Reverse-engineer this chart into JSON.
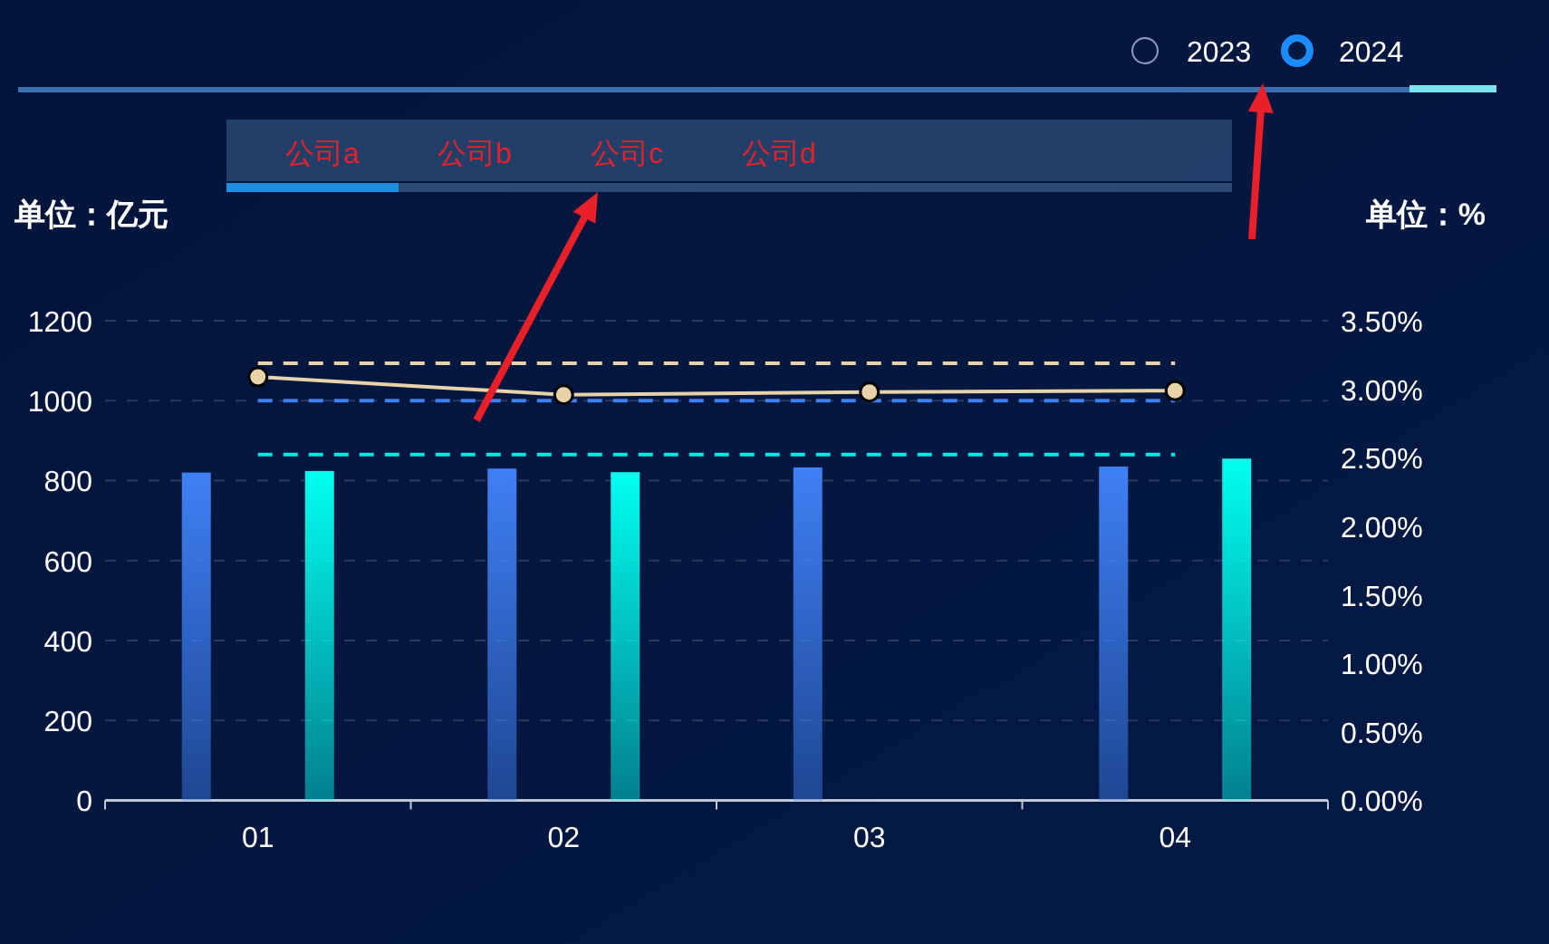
{
  "chart_data": {
    "type": "bar",
    "ylabel": "单位：亿元",
    "y2label": "单位：%",
    "categories": [
      "01",
      "02",
      "03",
      "04"
    ],
    "series": [
      {
        "color": "#3f80f5",
        "values": [
          820,
          830,
          833,
          835
        ]
      },
      {
        "color": "#00fff0",
        "values": [
          824,
          821,
          null,
          855
        ]
      },
      {
        "type": "line",
        "axis": "y2",
        "color": "#e8d3a8",
        "marker": "circle",
        "line_style": "solid",
        "values": [
          3.09,
          2.96,
          2.98,
          2.99
        ]
      }
    ],
    "ylim": [
      0,
      1200
    ],
    "yticks": [
      0,
      200,
      400,
      600,
      800,
      1000,
      1200
    ],
    "y2lim": [
      0,
      3.5
    ],
    "y2ticks": [
      {
        "value": 0,
        "label": "0.00%"
      },
      {
        "value": 0.5,
        "label": "0.50%"
      },
      {
        "value": 1,
        "label": "1.00%"
      },
      {
        "value": 1.5,
        "label": "1.50%"
      },
      {
        "value": 2,
        "label": "2.00%"
      },
      {
        "value": 2.5,
        "label": "2.50%"
      },
      {
        "value": 3,
        "label": "3.00%"
      },
      {
        "value": 3.5,
        "label": "3.50%"
      }
    ],
    "ref_lines": [
      {
        "axis": "y2",
        "value": 3.19,
        "color": "#e8d3a8",
        "line_style": "dashed"
      },
      {
        "axis": "y",
        "value": 1000,
        "color": "#3f80f5",
        "line_style": "dashed"
      },
      {
        "axis": "y",
        "value": 865,
        "color": "#00e5e5",
        "line_style": "dashed"
      }
    ],
    "grid": "y",
    "annotations": [
      "公司a",
      "公司b",
      "公司c",
      "公司d",
      "2023",
      "2024"
    ]
  }
}
